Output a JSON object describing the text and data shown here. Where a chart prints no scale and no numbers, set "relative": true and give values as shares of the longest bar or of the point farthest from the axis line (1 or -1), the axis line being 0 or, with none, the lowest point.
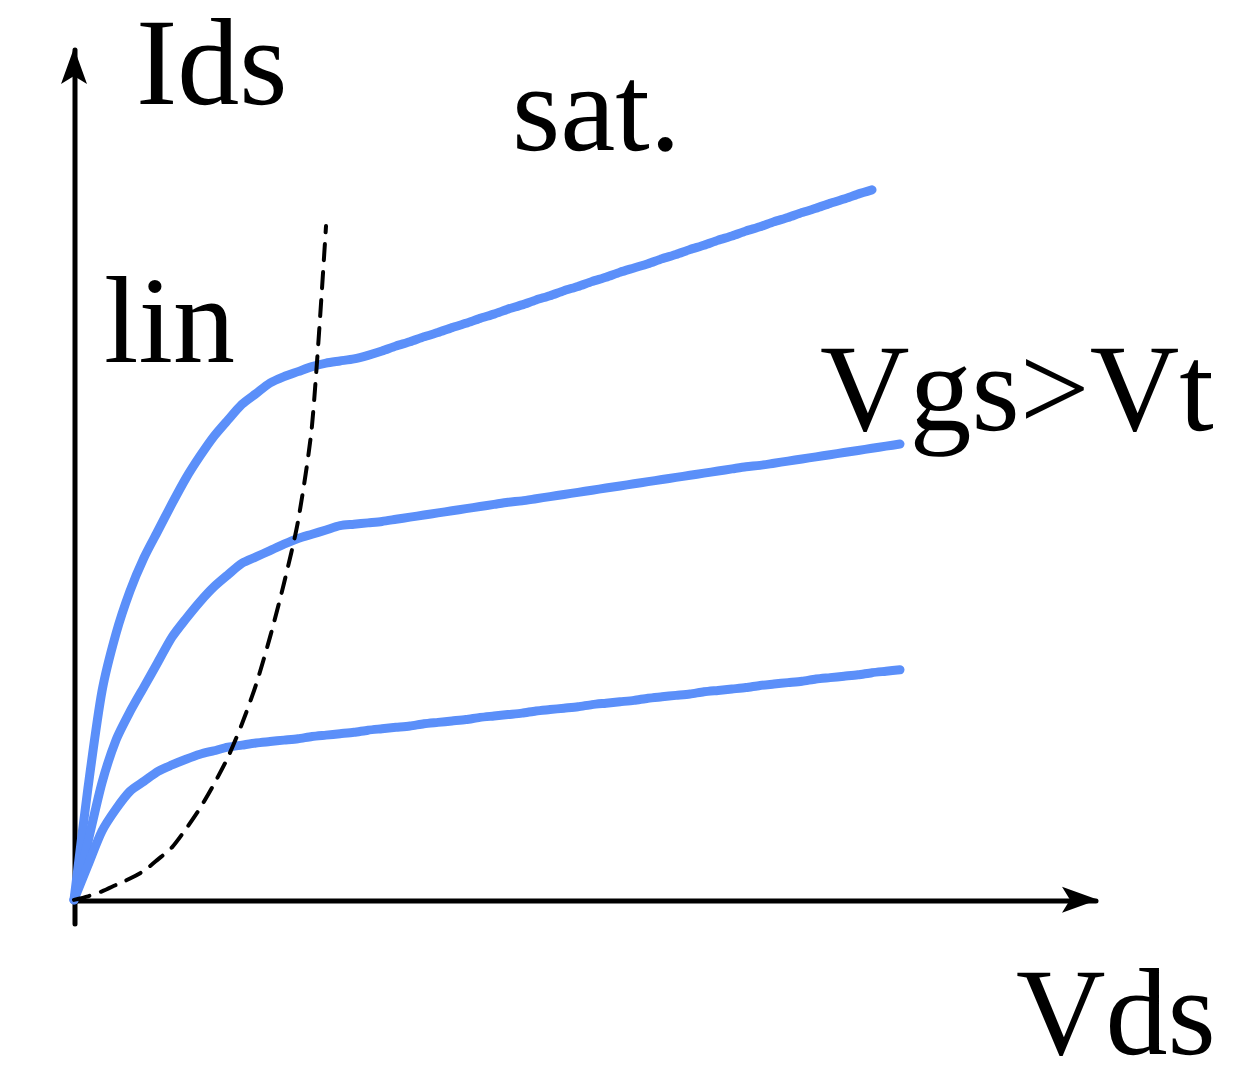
{
  "chart_data": {
    "type": "line",
    "relative": true,
    "xlabel": "Vds",
    "ylabel": "Ids",
    "annotations": [
      "lin",
      "sat.",
      "Vgs>Vt"
    ],
    "marker": "none",
    "categories": [
      null,
      null,
      null,
      null,
      null,
      null,
      null,
      null,
      null,
      null,
      null,
      null,
      null,
      null,
      null,
      null,
      null,
      null,
      null,
      null,
      null,
      null,
      null,
      null,
      null,
      null,
      null,
      null,
      null,
      null,
      null,
      null,
      null,
      null,
      null,
      null,
      null,
      null,
      null,
      null,
      null,
      null,
      null,
      null,
      null,
      null,
      null,
      null,
      null,
      null,
      null,
      null,
      null,
      null,
      null,
      null,
      null,
      null,
      null,
      null,
      null,
      null,
      null,
      null,
      null,
      null,
      null,
      null,
      null,
      null,
      null,
      null,
      null,
      null
    ],
    "series": [
      {
        "color": "#5b8ff9",
        "line_style": "solid",
        "values": [
          0,
          0.158,
          0.294,
          0.375,
          0.435,
          0.482,
          0.52,
          0.558,
          0.594,
          0.625,
          0.653,
          0.676,
          0.698,
          0.713,
          0.728,
          0.737,
          0.744,
          0.751,
          0.756,
          0.759,
          0.762,
          0.767,
          0.773,
          0.78,
          0.786,
          0.793,
          0.799,
          0.806,
          0.812,
          0.819,
          0.825,
          0.832,
          0.838,
          0.845,
          0.851,
          0.858,
          0.864,
          0.871,
          0.877,
          0.884,
          0.89,
          0.896,
          0.903,
          0.909,
          0.916,
          0.922,
          0.929,
          0.935,
          0.942,
          0.948,
          0.955,
          0.961,
          0.968,
          0.974,
          0.981,
          0.987,
          0.994,
          1.0,
          null,
          null,
          null,
          null,
          null,
          null,
          null,
          null,
          null,
          null,
          null,
          null,
          null,
          null,
          null,
          null
        ]
      },
      {
        "color": "#5b8ff9",
        "line_style": "solid",
        "values": [
          0,
          0.082,
          0.165,
          0.225,
          0.265,
          0.3,
          0.335,
          0.37,
          0.396,
          0.42,
          0.441,
          0.458,
          0.474,
          0.483,
          0.492,
          0.501,
          0.509,
          0.515,
          0.521,
          0.527,
          0.529,
          0.531,
          0.533,
          0.536,
          0.539,
          0.542,
          0.545,
          0.548,
          0.551,
          0.554,
          0.557,
          0.56,
          0.562,
          0.565,
          0.568,
          0.571,
          0.574,
          0.577,
          0.58,
          0.583,
          0.586,
          0.589,
          0.592,
          0.595,
          0.598,
          0.601,
          0.604,
          0.607,
          0.61,
          0.612,
          0.615,
          0.618,
          0.621,
          0.624,
          0.627,
          0.63,
          0.633,
          0.636,
          0.639,
          0.642,
          null,
          null,
          null,
          null,
          null,
          null,
          null,
          null,
          null,
          null,
          null,
          null,
          null,
          null
        ]
      },
      {
        "color": "#5b8ff9",
        "line_style": "solid",
        "values": [
          0,
          0.049,
          0.097,
          0.128,
          0.153,
          0.167,
          0.181,
          0.19,
          0.198,
          0.205,
          0.21,
          0.215,
          0.218,
          0.221,
          0.223,
          0.225,
          0.227,
          0.23,
          0.232,
          0.234,
          0.236,
          0.239,
          0.241,
          0.243,
          0.245,
          0.248,
          0.25,
          0.252,
          0.254,
          0.257,
          0.259,
          0.261,
          0.263,
          0.266,
          0.268,
          0.27,
          0.272,
          0.275,
          0.277,
          0.279,
          0.281,
          0.284,
          0.286,
          0.288,
          0.29,
          0.293,
          0.295,
          0.297,
          0.299,
          0.302,
          0.304,
          0.306,
          0.308,
          0.311,
          0.313,
          0.315,
          0.317,
          0.32,
          0.322,
          0.324,
          null,
          null,
          null,
          null,
          null,
          null,
          null,
          null,
          null,
          null,
          null,
          null,
          null,
          null
        ]
      },
      {
        "color": "#000000",
        "line_style": "dashed",
        "values": [
          0,
          0.005,
          0.012,
          0.021,
          0.03,
          0.041,
          0.057,
          0.074,
          0.1,
          0.129,
          0.163,
          0.201,
          0.248,
          0.303,
          0.37,
          0.446,
          0.533,
          0.668,
          0.949,
          null,
          null,
          null,
          null,
          null,
          null,
          null,
          null,
          null,
          null,
          null,
          null,
          null,
          null,
          null,
          null,
          null,
          null,
          null,
          null,
          null,
          null,
          null,
          null,
          null,
          null,
          null,
          null,
          null,
          null,
          null,
          null,
          null,
          null,
          null,
          null,
          null,
          null,
          null,
          null,
          null,
          null,
          null,
          null,
          null,
          null,
          null,
          null,
          null,
          null,
          null,
          null,
          null,
          null,
          null
        ]
      }
    ]
  }
}
